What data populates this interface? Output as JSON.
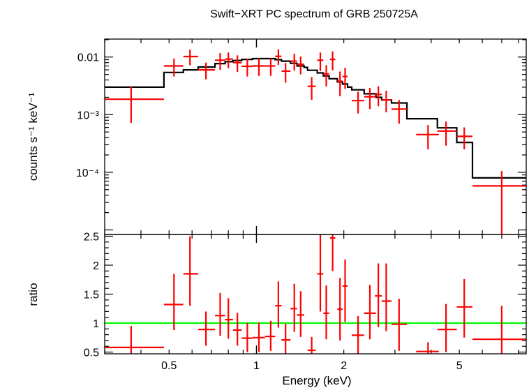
{
  "chart_data": [
    {
      "type": "scatter",
      "panel": "spectrum",
      "title": "Swift−XRT PC spectrum of GRB 250725A",
      "ylabel": "counts s⁻¹ keV⁻¹",
      "xscale": "log",
      "yscale": "log",
      "xlim": [
        0.3,
        8.5
      ],
      "ylim": [
        8.33e-06,
        0.0205
      ],
      "ytick_labels": [
        {
          "value": 0.01,
          "label": "0.01"
        },
        {
          "value": 0.001,
          "label": "10⁻³"
        },
        {
          "value": 0.0001,
          "label": "10⁻⁴"
        }
      ],
      "series": [
        {
          "kind": "errorbar",
          "color": "#ff0000",
          "points": [
            {
              "x": 0.37,
              "xlo": 0.3,
              "xhi": 0.48,
              "y": 0.00185,
              "ylo": 0.00072,
              "yhi": 0.0031
            },
            {
              "x": 0.52,
              "xlo": 0.48,
              "xhi": 0.56,
              "y": 0.007,
              "ylo": 0.0046,
              "yhi": 0.0094
            },
            {
              "x": 0.59,
              "xlo": 0.56,
              "xhi": 0.63,
              "y": 0.0102,
              "ylo": 0.0072,
              "yhi": 0.0134
            },
            {
              "x": 0.67,
              "xlo": 0.63,
              "xhi": 0.72,
              "y": 0.006,
              "ylo": 0.0041,
              "yhi": 0.008
            },
            {
              "x": 0.75,
              "xlo": 0.72,
              "xhi": 0.78,
              "y": 0.0088,
              "ylo": 0.006,
              "yhi": 0.0117
            },
            {
              "x": 0.8,
              "xlo": 0.78,
              "xhi": 0.83,
              "y": 0.0092,
              "ylo": 0.0064,
              "yhi": 0.012
            },
            {
              "x": 0.86,
              "xlo": 0.83,
              "xhi": 0.89,
              "y": 0.008,
              "ylo": 0.0055,
              "yhi": 0.0107
            },
            {
              "x": 0.93,
              "xlo": 0.89,
              "xhi": 0.97,
              "y": 0.0069,
              "ylo": 0.0046,
              "yhi": 0.0093
            },
            {
              "x": 1.02,
              "xlo": 0.97,
              "xhi": 1.07,
              "y": 0.007,
              "ylo": 0.0047,
              "yhi": 0.0095
            },
            {
              "x": 1.12,
              "xlo": 1.07,
              "xhi": 1.16,
              "y": 0.007,
              "ylo": 0.0047,
              "yhi": 0.0095
            },
            {
              "x": 1.19,
              "xlo": 1.16,
              "xhi": 1.22,
              "y": 0.0103,
              "ylo": 0.0073,
              "yhi": 0.0136
            },
            {
              "x": 1.26,
              "xlo": 1.22,
              "xhi": 1.31,
              "y": 0.0057,
              "ylo": 0.0036,
              "yhi": 0.0079
            },
            {
              "x": 1.35,
              "xlo": 1.31,
              "xhi": 1.38,
              "y": 0.0085,
              "ylo": 0.0058,
              "yhi": 0.0114
            },
            {
              "x": 1.42,
              "xlo": 1.38,
              "xhi": 1.46,
              "y": 0.0075,
              "ylo": 0.005,
              "yhi": 0.0102
            },
            {
              "x": 1.55,
              "xlo": 1.5,
              "xhi": 1.6,
              "y": 0.0031,
              "ylo": 0.0018,
              "yhi": 0.0045
            },
            {
              "x": 1.66,
              "xlo": 1.62,
              "xhi": 1.7,
              "y": 0.0088,
              "ylo": 0.0057,
              "yhi": 0.012
            },
            {
              "x": 1.74,
              "xlo": 1.7,
              "xhi": 1.78,
              "y": 0.0051,
              "ylo": 0.0031,
              "yhi": 0.0072
            },
            {
              "x": 1.83,
              "xlo": 1.79,
              "xhi": 1.87,
              "y": 0.0091,
              "ylo": 0.0059,
              "yhi": 0.0125
            },
            {
              "x": 1.94,
              "xlo": 1.9,
              "xhi": 1.98,
              "y": 0.0038,
              "ylo": 0.0021,
              "yhi": 0.0056
            },
            {
              "x": 2.02,
              "xlo": 1.98,
              "xhi": 2.06,
              "y": 0.0046,
              "ylo": 0.0028,
              "yhi": 0.0065
            },
            {
              "x": 2.24,
              "xlo": 2.13,
              "xhi": 2.35,
              "y": 0.00175,
              "ylo": 0.00105,
              "yhi": 0.0025
            },
            {
              "x": 2.46,
              "xlo": 2.35,
              "xhi": 2.58,
              "y": 0.00205,
              "ylo": 0.00125,
              "yhi": 0.0029
            },
            {
              "x": 2.63,
              "xlo": 2.56,
              "xhi": 2.7,
              "y": 0.00225,
              "ylo": 0.0014,
              "yhi": 0.0031
            },
            {
              "x": 2.8,
              "xlo": 2.7,
              "xhi": 2.92,
              "y": 0.0018,
              "ylo": 0.0011,
              "yhi": 0.0026
            },
            {
              "x": 3.1,
              "xlo": 2.92,
              "xhi": 3.3,
              "y": 0.00125,
              "ylo": 0.0007,
              "yhi": 0.0018
            },
            {
              "x": 3.9,
              "xlo": 3.55,
              "xhi": 4.25,
              "y": 0.00045,
              "ylo": 0.00025,
              "yhi": 0.00066
            },
            {
              "x": 4.5,
              "xlo": 4.2,
              "xhi": 4.9,
              "y": 0.00052,
              "ylo": 0.00029,
              "yhi": 0.00076
            },
            {
              "x": 5.2,
              "xlo": 4.9,
              "xhi": 5.55,
              "y": 0.00042,
              "ylo": 0.00025,
              "yhi": 0.0006
            },
            {
              "x": 7.0,
              "xlo": 5.55,
              "xhi": 8.5,
              "y": 5.8e-05,
              "ylo": 8e-06,
              "yhi": 0.000105
            }
          ]
        },
        {
          "kind": "step-model",
          "color": "#000000",
          "edges": [
            0.3,
            0.48,
            0.56,
            0.63,
            0.72,
            0.78,
            0.83,
            0.89,
            0.97,
            1.07,
            1.16,
            1.22,
            1.31,
            1.38,
            1.46,
            1.5,
            1.62,
            1.7,
            1.78,
            1.9,
            1.98,
            2.06,
            2.13,
            2.35,
            2.58,
            2.7,
            2.92,
            3.3,
            4.2,
            4.9,
            5.55,
            8.5
          ],
          "values": [
            0.003,
            0.0054,
            0.006,
            0.0067,
            0.0077,
            0.0083,
            0.0087,
            0.0091,
            0.0094,
            0.0094,
            0.009,
            0.0085,
            0.0078,
            0.007,
            0.0066,
            0.0059,
            0.0053,
            0.0047,
            0.0042,
            0.0037,
            0.0034,
            0.003,
            0.0027,
            0.0023,
            0.002,
            0.0018,
            0.0016,
            0.00085,
            0.00059,
            0.00033,
            8e-05
          ]
        }
      ]
    },
    {
      "type": "scatter",
      "panel": "ratio",
      "xlabel": "Energy (keV)",
      "ylabel": "ratio",
      "xscale": "log",
      "yscale": "linear",
      "xlim": [
        0.3,
        8.5
      ],
      "ylim": [
        0.47,
        2.53
      ],
      "xtick_labels": [
        {
          "value": 0.5,
          "label": "0.5"
        },
        {
          "value": 1,
          "label": "1"
        },
        {
          "value": 2,
          "label": "2"
        },
        {
          "value": 5,
          "label": "5"
        }
      ],
      "ytick_labels": [
        {
          "value": 0.5,
          "label": "0.5"
        },
        {
          "value": 1,
          "label": "1"
        },
        {
          "value": 1.5,
          "label": "1.5"
        },
        {
          "value": 2,
          "label": "2"
        },
        {
          "value": 2.5,
          "label": "2.5"
        }
      ],
      "reference_line": {
        "y": 1,
        "color": "#00ff00"
      },
      "series": [
        {
          "kind": "errorbar",
          "color": "#ff0000",
          "points": [
            {
              "x": 0.37,
              "xlo": 0.3,
              "xhi": 0.48,
              "y": 0.58,
              "ylo": 0.47,
              "yhi": 0.95
            },
            {
              "x": 0.52,
              "xlo": 0.48,
              "xhi": 0.56,
              "y": 1.32,
              "ylo": 0.88,
              "yhi": 1.85
            },
            {
              "x": 0.59,
              "xlo": 0.56,
              "xhi": 0.63,
              "y": 1.85,
              "ylo": 1.3,
              "yhi": 2.5
            },
            {
              "x": 0.67,
              "xlo": 0.63,
              "xhi": 0.72,
              "y": 0.89,
              "ylo": 0.61,
              "yhi": 1.2
            },
            {
              "x": 0.75,
              "xlo": 0.72,
              "xhi": 0.78,
              "y": 1.13,
              "ylo": 0.78,
              "yhi": 1.52
            },
            {
              "x": 0.8,
              "xlo": 0.78,
              "xhi": 0.83,
              "y": 1.06,
              "ylo": 0.73,
              "yhi": 1.43
            },
            {
              "x": 0.86,
              "xlo": 0.83,
              "xhi": 0.89,
              "y": 0.88,
              "ylo": 0.61,
              "yhi": 1.18
            },
            {
              "x": 0.93,
              "xlo": 0.89,
              "xhi": 0.97,
              "y": 0.74,
              "ylo": 0.5,
              "yhi": 1.0
            },
            {
              "x": 1.02,
              "xlo": 0.97,
              "xhi": 1.07,
              "y": 0.75,
              "ylo": 0.5,
              "yhi": 1.01
            },
            {
              "x": 1.12,
              "xlo": 1.07,
              "xhi": 1.16,
              "y": 0.77,
              "ylo": 0.52,
              "yhi": 1.04
            },
            {
              "x": 1.19,
              "xlo": 1.16,
              "xhi": 1.22,
              "y": 1.3,
              "ylo": 0.92,
              "yhi": 1.72
            },
            {
              "x": 1.26,
              "xlo": 1.22,
              "xhi": 1.31,
              "y": 0.71,
              "ylo": 0.45,
              "yhi": 0.99
            },
            {
              "x": 1.35,
              "xlo": 1.31,
              "xhi": 1.38,
              "y": 1.25,
              "ylo": 0.85,
              "yhi": 1.68
            },
            {
              "x": 1.42,
              "xlo": 1.38,
              "xhi": 1.46,
              "y": 1.14,
              "ylo": 0.76,
              "yhi": 1.55
            },
            {
              "x": 1.55,
              "xlo": 1.5,
              "xhi": 1.6,
              "y": 0.53,
              "ylo": 0.32,
              "yhi": 0.76
            },
            {
              "x": 1.66,
              "xlo": 1.62,
              "xhi": 1.7,
              "y": 1.85,
              "ylo": 1.2,
              "yhi": 2.53
            },
            {
              "x": 1.74,
              "xlo": 1.7,
              "xhi": 1.78,
              "y": 1.17,
              "ylo": 0.72,
              "yhi": 1.65
            },
            {
              "x": 1.83,
              "xlo": 1.79,
              "xhi": 1.87,
              "y": 2.47,
              "ylo": 1.9,
              "yhi": 2.53
            },
            {
              "x": 1.94,
              "xlo": 1.9,
              "xhi": 1.98,
              "y": 1.24,
              "ylo": 0.7,
              "yhi": 1.78
            },
            {
              "x": 2.02,
              "xlo": 1.98,
              "xhi": 2.06,
              "y": 1.64,
              "ylo": 1.02,
              "yhi": 2.1
            },
            {
              "x": 2.24,
              "xlo": 2.13,
              "xhi": 2.35,
              "y": 0.79,
              "ylo": 0.47,
              "yhi": 1.12
            },
            {
              "x": 2.46,
              "xlo": 2.35,
              "xhi": 2.58,
              "y": 1.17,
              "ylo": 0.72,
              "yhi": 1.66
            },
            {
              "x": 2.63,
              "xlo": 2.56,
              "xhi": 2.7,
              "y": 1.47,
              "ylo": 0.93,
              "yhi": 2.03
            },
            {
              "x": 2.8,
              "xlo": 2.7,
              "xhi": 2.92,
              "y": 1.38,
              "ylo": 0.86,
              "yhi": 2.03
            },
            {
              "x": 3.1,
              "xlo": 2.92,
              "xhi": 3.3,
              "y": 0.98,
              "ylo": 0.52,
              "yhi": 1.42
            },
            {
              "x": 3.9,
              "xlo": 3.55,
              "xhi": 4.25,
              "y": 0.51,
              "ylo": 0.47,
              "yhi": 0.67
            },
            {
              "x": 4.5,
              "xlo": 4.2,
              "xhi": 4.9,
              "y": 0.89,
              "ylo": 0.5,
              "yhi": 1.33
            },
            {
              "x": 5.2,
              "xlo": 4.9,
              "xhi": 5.55,
              "y": 1.28,
              "ylo": 0.75,
              "yhi": 1.76
            },
            {
              "x": 7.0,
              "xlo": 5.55,
              "xhi": 8.5,
              "y": 0.72,
              "ylo": 0.47,
              "yhi": 1.3
            }
          ]
        }
      ]
    }
  ]
}
